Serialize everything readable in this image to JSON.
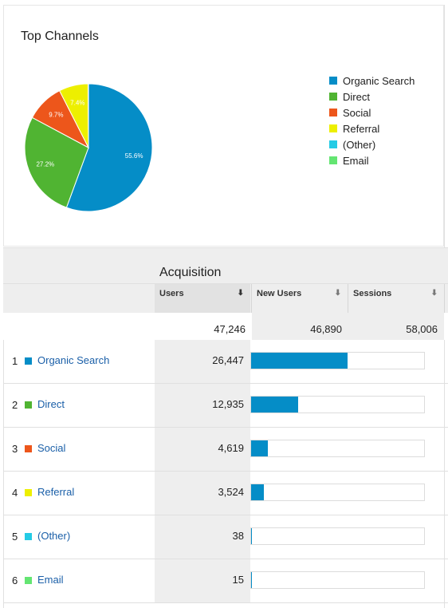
{
  "card": {
    "title": "Top Channels"
  },
  "chart_data": {
    "type": "pie",
    "categories": [
      "Organic Search",
      "Direct",
      "Social",
      "Referral",
      "(Other)",
      "Email"
    ],
    "values": [
      55.6,
      27.2,
      9.7,
      7.4,
      0.1,
      0.0
    ],
    "labels": [
      "55.6%",
      "27.2%",
      "9.7%",
      "7.4%",
      "",
      ""
    ],
    "colors": [
      "#058dc7",
      "#50b432",
      "#ed561b",
      "#edef00",
      "#24cbe5",
      "#64e572"
    ],
    "legend_position": "right"
  },
  "acquisition": {
    "title": "Acquisition",
    "columns": [
      {
        "label": "Users",
        "arrow": "⬇"
      },
      {
        "label": "New Users",
        "arrow": "⬇"
      },
      {
        "label": "Sessions",
        "arrow": "⬇"
      }
    ],
    "totals": {
      "users": "47,246",
      "new_users": "46,890",
      "sessions": "58,006"
    },
    "rows": [
      {
        "num": "1",
        "name": "Organic Search",
        "users": "26,447",
        "share": 0.559,
        "color": "#058dc7"
      },
      {
        "num": "2",
        "name": "Direct",
        "users": "12,935",
        "share": 0.274,
        "color": "#50b432"
      },
      {
        "num": "3",
        "name": "Social",
        "users": "4,619",
        "share": 0.098,
        "color": "#ed561b"
      },
      {
        "num": "4",
        "name": "Referral",
        "users": "3,524",
        "share": 0.075,
        "color": "#edef00"
      },
      {
        "num": "5",
        "name": "(Other)",
        "users": "38",
        "share": 0.001,
        "color": "#24cbe5"
      },
      {
        "num": "6",
        "name": "Email",
        "users": "15",
        "share": 0.0003,
        "color": "#64e572"
      }
    ]
  }
}
